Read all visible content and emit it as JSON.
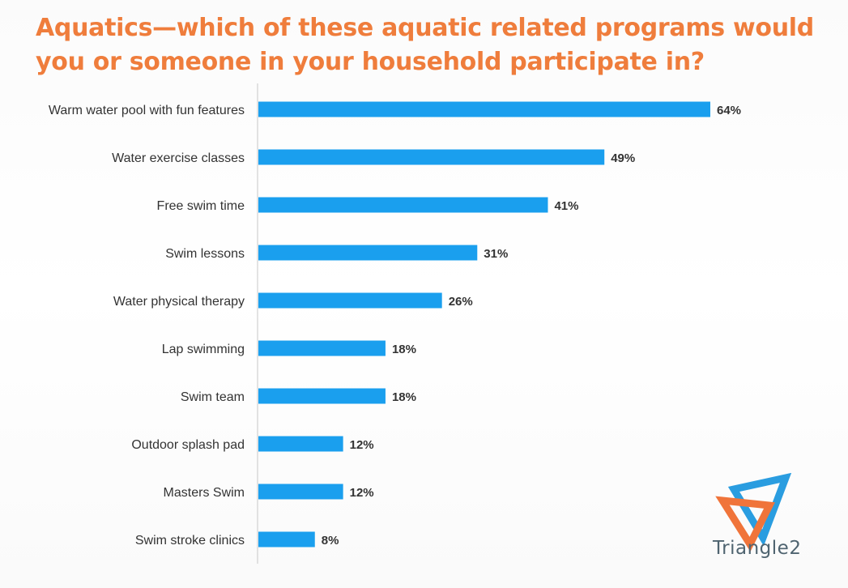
{
  "colors": {
    "title": "#ef7d3c",
    "bar": "#1a9fee",
    "axis": "#c8c8c8",
    "label": "#333333",
    "logo_orange": "#f0743a",
    "logo_blue": "#2a9de0"
  },
  "branding": {
    "logo_text": "Triangle2"
  },
  "chart_data": {
    "type": "bar",
    "orientation": "horizontal",
    "title": "Aquatics—which of these aquatic related programs would you or someone in your household participate in?",
    "title_lines": [
      "Aquatics—which of these aquatic related programs would",
      "you or someone in your household participate in?"
    ],
    "categories": [
      "Warm water pool with fun features",
      "Water exercise classes",
      "Free swim time",
      "Swim lessons",
      "Water physical therapy",
      "Lap swimming",
      "Swim team",
      "Outdoor splash pad",
      "Masters Swim",
      "Swim stroke clinics"
    ],
    "values": [
      64,
      49,
      41,
      31,
      26,
      18,
      18,
      12,
      12,
      8
    ],
    "value_labels": [
      "64%",
      "49%",
      "41%",
      "31%",
      "26%",
      "18%",
      "18%",
      "12%",
      "12%",
      "8%"
    ],
    "xlim": [
      0,
      64
    ],
    "unit": "%",
    "grid": false,
    "legend": "none"
  }
}
